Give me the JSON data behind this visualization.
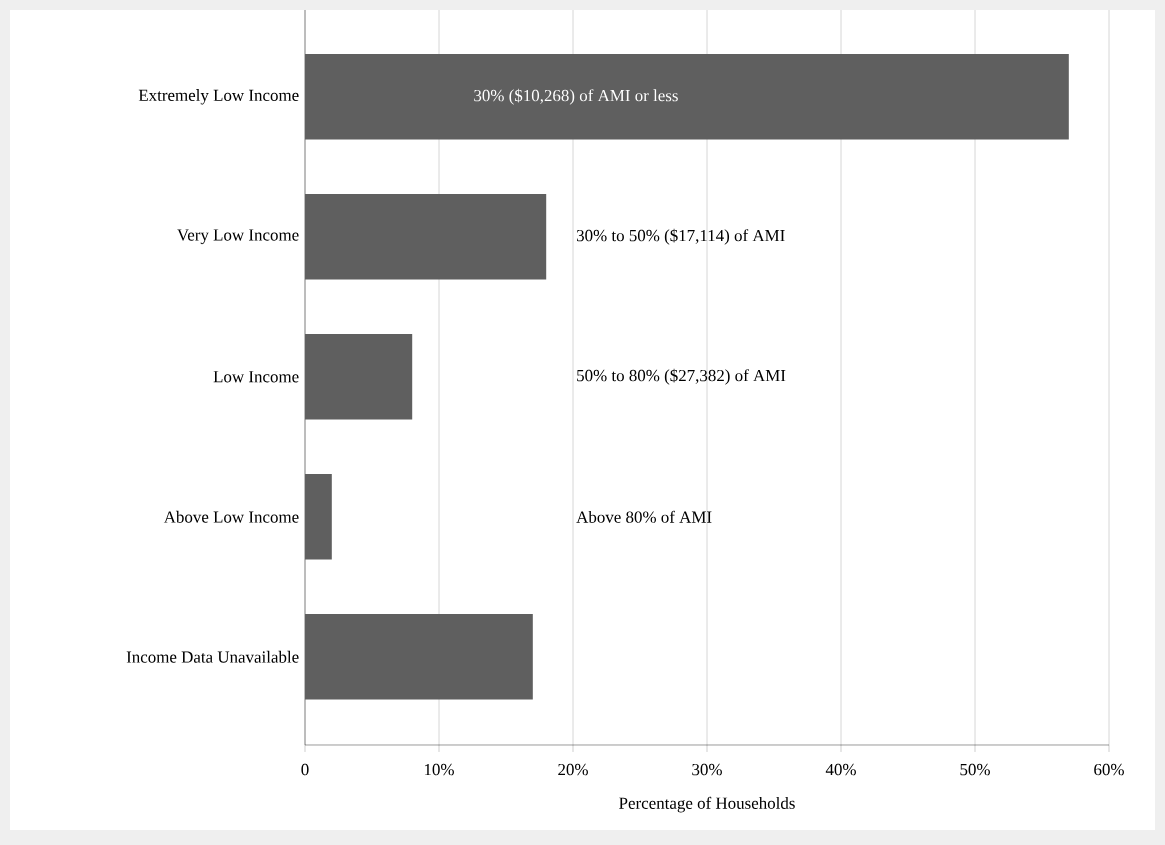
{
  "chart_data": {
    "type": "bar",
    "orientation": "horizontal",
    "xlabel": "Percentage of Households",
    "categories": [
      "Extremely Low Income",
      "Very Low Income",
      "Low Income",
      "Above Low Income",
      "Income Data Unavailable"
    ],
    "values": [
      57,
      18,
      8,
      2,
      17
    ],
    "color": "#5f5f5f",
    "xlim": [
      0,
      60
    ],
    "xticks": [
      0,
      {
        "value": 10,
        "label": "10%"
      },
      {
        "value": 20,
        "label": "20%"
      },
      {
        "value": 30,
        "label": "30%"
      },
      {
        "value": 40,
        "label": "40%"
      },
      {
        "value": 50,
        "label": "50%"
      },
      {
        "value": 60,
        "label": "60%"
      }
    ],
    "grid": "x",
    "annotations": [
      "30% ($10,268) of AMI or less",
      "30% to 50% ($17,114) of AMI",
      "50% to 80% ($27,382) of AMI",
      "Above 80% of AMI"
    ]
  }
}
